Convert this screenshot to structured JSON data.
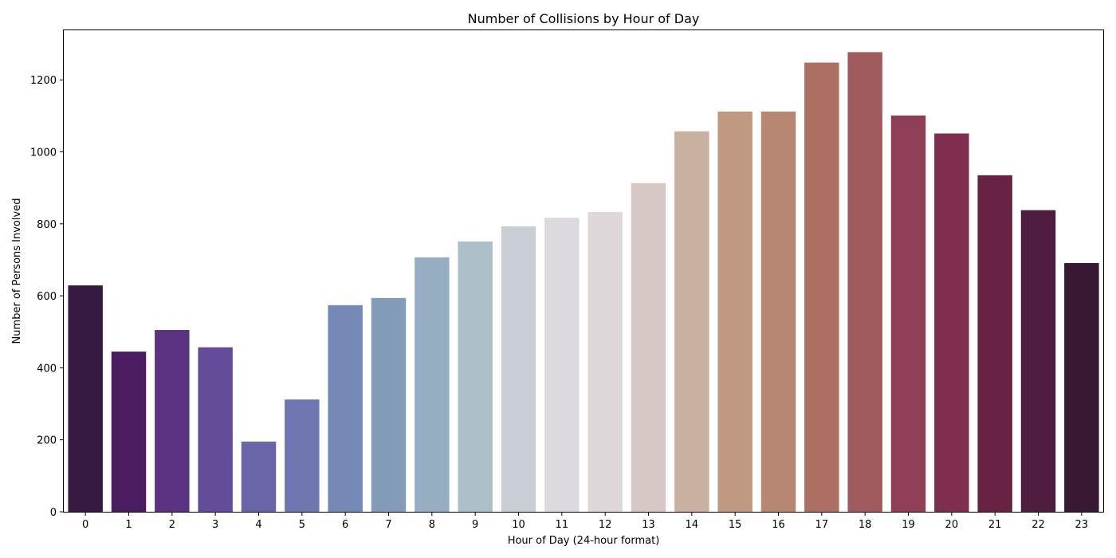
{
  "chart_data": {
    "type": "bar",
    "title": "Number of Collisions by Hour of Day",
    "xlabel": "Hour of Day (24-hour format)",
    "ylabel": "Number of Persons Involved",
    "ylim": [
      0,
      1340
    ],
    "yticks": [
      0,
      200,
      400,
      600,
      800,
      1000,
      1200
    ],
    "grid": false,
    "legend": "none",
    "categories": [
      "0",
      "1",
      "2",
      "3",
      "4",
      "5",
      "6",
      "7",
      "8",
      "9",
      "10",
      "11",
      "12",
      "13",
      "14",
      "15",
      "16",
      "17",
      "18",
      "19",
      "20",
      "21",
      "22",
      "23"
    ],
    "values": [
      629,
      445,
      505,
      457,
      195,
      312,
      574,
      594,
      707,
      751,
      793,
      817,
      833,
      913,
      1057,
      1112,
      1112,
      1248,
      1277,
      1101,
      1051,
      935,
      838,
      691
    ],
    "colors": [
      "#371a41",
      "#4b1d60",
      "#5b3282",
      "#634c99",
      "#6a64a8",
      "#6f77b0",
      "#7489b5",
      "#829cba",
      "#96adc2",
      "#adbfc8",
      "#c8ced3",
      "#dcd9df",
      "#ded8db",
      "#d6c6c4",
      "#c9b1a2",
      "#c09983",
      "#b78774",
      "#ac6f62",
      "#a15b5d",
      "#8f3e56",
      "#7e2e4e",
      "#682244",
      "#4f1d3f",
      "#371a32"
    ]
  }
}
